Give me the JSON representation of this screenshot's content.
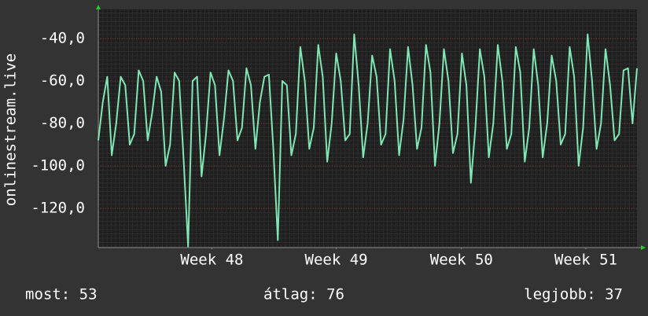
{
  "chart_data": {
    "type": "line",
    "y_label": "onlinestream.live",
    "values": [
      -88,
      -70,
      -58,
      -95,
      -80,
      -58,
      -62,
      -90,
      -85,
      -55,
      -60,
      -88,
      -75,
      -58,
      -65,
      -100,
      -90,
      -56,
      -60,
      -97,
      -138,
      -60,
      -58,
      -105,
      -85,
      -56,
      -62,
      -95,
      -78,
      -55,
      -60,
      -88,
      -82,
      -54,
      -62,
      -92,
      -70,
      -58,
      -57,
      -92,
      -135,
      -60,
      -62,
      -95,
      -85,
      -44,
      -60,
      -92,
      -82,
      -43,
      -58,
      -98,
      -80,
      -47,
      -60,
      -88,
      -85,
      -38,
      -62,
      -96,
      -80,
      -48,
      -58,
      -90,
      -85,
      -45,
      -60,
      -95,
      -78,
      -44,
      -62,
      -92,
      -82,
      -43,
      -56,
      -100,
      -80,
      -45,
      -60,
      -94,
      -85,
      -47,
      -62,
      -108,
      -82,
      -45,
      -58,
      -96,
      -80,
      -43,
      -60,
      -92,
      -85,
      -44,
      -56,
      -98,
      -82,
      -45,
      -62,
      -96,
      -80,
      -48,
      -60,
      -90,
      -85,
      -44,
      -58,
      -100,
      -82,
      -38,
      -60,
      -92,
      -80,
      -45,
      -62,
      -88,
      -85,
      -55,
      -54,
      -80,
      -54
    ],
    "color": "#7fe6b4",
    "xlim": [
      0,
      120
    ],
    "xticks": [
      {
        "value": 25.3,
        "label": "Week 48"
      },
      {
        "value": 53.0,
        "label": "Week 49"
      },
      {
        "value": 80.9,
        "label": "Week 50"
      },
      {
        "value": 108.6,
        "label": "Week 51"
      }
    ],
    "ylim": [
      -138.5,
      -26.3
    ],
    "yticks": [
      {
        "value": -40,
        "label": "-40,0"
      },
      {
        "value": -60,
        "label": "-60,0"
      },
      {
        "value": -80,
        "label": "-80,0"
      },
      {
        "value": -100,
        "label": "-100,0"
      },
      {
        "value": -120,
        "label": "-120,0"
      }
    ],
    "grid": true,
    "footer": [
      "most: 53",
      "átlag: 76",
      "legjobb: 37"
    ]
  }
}
